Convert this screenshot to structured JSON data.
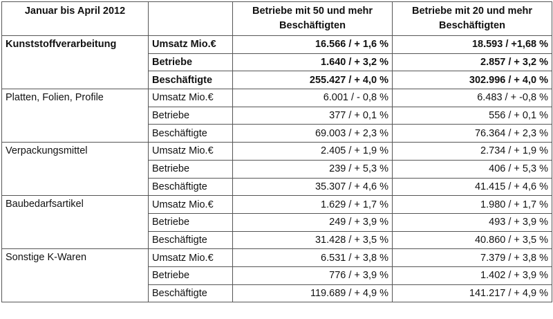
{
  "header": {
    "period": "Januar bis April 2012",
    "col_50": "Betriebe mit 50 und mehr Beschäftigten",
    "col_20": "Betriebe mit 20 und mehr Beschäftigten"
  },
  "groups": [
    {
      "name": "Kunststoffverarbeitung",
      "rows": [
        {
          "metric": "Umsatz Mio.€",
          "v50": "16.566 / + 1,6 %",
          "v20": "18.593 / +1,68 %"
        },
        {
          "metric": "Betriebe",
          "v50": "1.640 / + 3,2 %",
          "v20": "2.857 / + 3,2 %"
        },
        {
          "metric": "Beschäftigte",
          "v50": "255.427 / + 4,0 %",
          "v20": "302.996 / + 4,0 %"
        }
      ]
    },
    {
      "name": "Platten, Folien, Profile",
      "rows": [
        {
          "metric": "Umsatz Mio.€",
          "v50": "6.001 / - 0,8 %",
          "v20": "6.483 / + -0,8 %"
        },
        {
          "metric": "Betriebe",
          "v50": "377 / + 0,1 %",
          "v20": "556 / + 0,1 %"
        },
        {
          "metric": "Beschäftigte",
          "v50": "69.003 / + 2,3 %",
          "v20": "76.364 / + 2,3 %"
        }
      ]
    },
    {
      "name": "Verpackungsmittel",
      "rows": [
        {
          "metric": "Umsatz Mio.€",
          "v50": "2.405 / + 1,9 %",
          "v20": "2.734 / + 1,9 %"
        },
        {
          "metric": "Betriebe",
          "v50": "239 / + 5,3 %",
          "v20": "406 / + 5,3 %"
        },
        {
          "metric": "Beschäftigte",
          "v50": "35.307 / + 4,6 %",
          "v20": "41.415 / + 4,6 %"
        }
      ]
    },
    {
      "name": "Baubedarfsartikel",
      "rows": [
        {
          "metric": "Umsatz Mio.€",
          "v50": "1.629 / + 1,7 %",
          "v20": "1.980 / + 1,7 %"
        },
        {
          "metric": "Betriebe",
          "v50": "249 / + 3,9 %",
          "v20": "493 / + 3,9 %"
        },
        {
          "metric": "Beschäftigte",
          "v50": "31.428 / + 3,5 %",
          "v20": "40.860 / + 3,5 %"
        }
      ]
    },
    {
      "name": "Sonstige K-Waren",
      "rows": [
        {
          "metric": "Umsatz Mio.€",
          "v50": "6.531 / + 3,8 %",
          "v20": "7.379 / + 3,8 %"
        },
        {
          "metric": "Betriebe",
          "v50": "776 / + 3,9 %",
          "v20": "1.402 / + 3,9 %"
        },
        {
          "metric": "Beschäftigte",
          "v50": "119.689 / + 4,9 %",
          "v20": "141.217 / + 4,9 %"
        }
      ]
    }
  ]
}
